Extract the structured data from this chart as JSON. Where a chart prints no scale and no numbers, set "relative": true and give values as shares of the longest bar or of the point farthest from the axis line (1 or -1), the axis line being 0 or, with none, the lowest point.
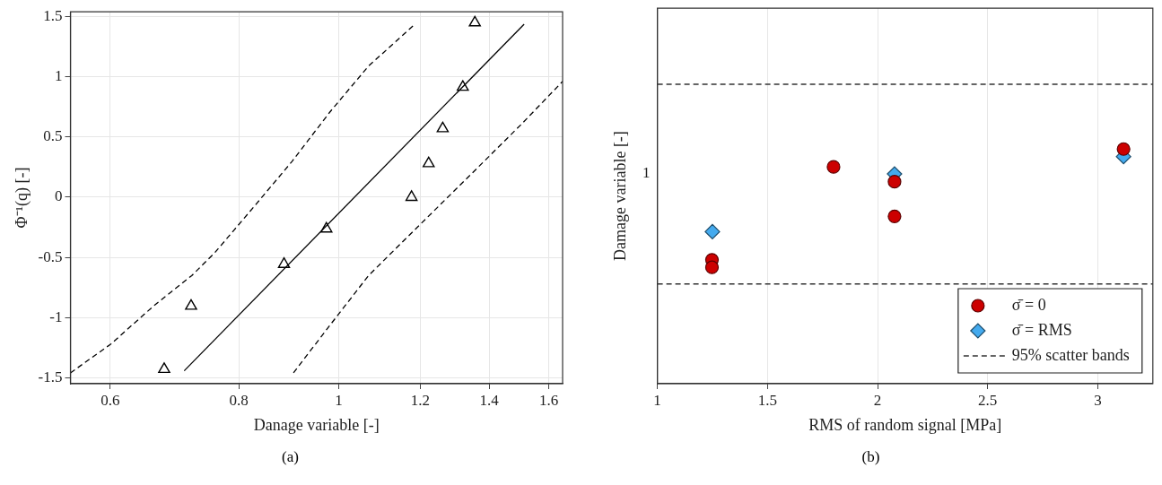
{
  "chart_data": [
    {
      "type": "scatter",
      "xlabel": "Danage variable [-]",
      "ylabel": "Φ⁻¹(q) [-]",
      "log": "x",
      "xlim": [
        0.549,
        1.65
      ],
      "ylim": [
        -1.55,
        1.54
      ],
      "xticks": [
        0.6,
        0.8,
        1,
        1.2,
        1.4,
        1.6
      ],
      "yticks": [
        -1.5,
        -1,
        -0.5,
        0,
        0.5,
        1,
        1.5
      ],
      "grid": true,
      "legend": false,
      "annotations": [
        "(a)"
      ],
      "series": [
        {
          "type": "line",
          "color": "#000000",
          "marker": "none",
          "line_style": "solid",
          "x": [
            0.708,
            1.514
          ],
          "values": [
            -1.443,
            1.437
          ]
        },
        {
          "type": "line",
          "color": "#000000",
          "marker": "none",
          "line_style": "dashed",
          "x": [
            0.549,
            0.601,
            0.661,
            0.72,
            0.758,
            0.827,
            0.901,
            0.981,
            1.069,
            1.186
          ],
          "values": [
            -1.46,
            -1.22,
            -0.905,
            -0.652,
            -0.462,
            -0.082,
            0.297,
            0.709,
            1.089,
            1.437
          ]
        },
        {
          "type": "line",
          "color": "#000000",
          "marker": "none",
          "line_style": "dashed",
          "x": [
            0.904,
            0.981,
            1.069,
            1.165,
            1.27,
            1.384,
            1.508,
            1.65
          ],
          "values": [
            -1.459,
            -1.063,
            -0.652,
            -0.335,
            -0.019,
            0.297,
            0.614,
            0.962
          ]
        },
        {
          "type": "scatter",
          "color": "#000000",
          "marker": "triangle",
          "x": [
            0.677,
            0.719,
            0.885,
            0.973,
            1.177,
            1.223,
            1.262,
            1.32,
            1.356
          ],
          "values": [
            -1.43,
            -0.905,
            -0.557,
            -0.263,
            0,
            0.28,
            0.57,
            0.915,
            1.45
          ]
        }
      ]
    },
    {
      "type": "scatter",
      "xlabel": "RMS of random signal [MPa]",
      "ylabel": "Damage variable [-]",
      "relative": true,
      "xlim": [
        1,
        3.25
      ],
      "xticks": [
        1,
        1.5,
        2,
        2.5,
        3
      ],
      "grid": true,
      "legend": "bottom right",
      "annotations": [
        "1",
        "(b)"
      ],
      "ref_lines": [
        {
          "axis": "y",
          "value": 1.276,
          "label": "95% scatter bands",
          "color": "#333333",
          "line_style": "dashed"
        },
        {
          "axis": "y",
          "value": 0.425,
          "color": "#333333",
          "line_style": "dashed"
        }
      ],
      "series": [
        {
          "type": "scatter",
          "name": "σ̄ = 0",
          "color": "#cc0000",
          "marker": "circle",
          "x": [
            1.248,
            1.248,
            1.8,
            2.077,
            2.077,
            3.117
          ],
          "values": [
            0.528,
            0.496,
            0.924,
            0.861,
            0.713,
            1
          ]
        },
        {
          "type": "scatter",
          "name": "σ̄ = RMS",
          "color": "#44aaee",
          "marker": "diamond",
          "x": [
            1.25,
            2.077,
            3.117
          ],
          "values": [
            0.648,
            0.894,
            0.968
          ]
        }
      ]
    }
  ]
}
